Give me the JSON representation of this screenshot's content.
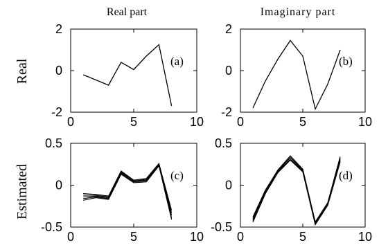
{
  "column_titles": [
    "Real part",
    "Imaginary part"
  ],
  "row_labels": [
    "Real",
    "Estimated"
  ],
  "chart_data": [
    {
      "type": "line",
      "panel_label": "(a)",
      "xlim": [
        0,
        10
      ],
      "ylim": [
        -2,
        2
      ],
      "xticks": [
        0,
        5,
        10
      ],
      "xtick_labels": [
        "0",
        "5",
        "10"
      ],
      "yticks": [
        2,
        0,
        -2
      ],
      "ytick_labels": [
        "2",
        "0",
        "-2"
      ],
      "series": [
        {
          "x": [
            1,
            2,
            3,
            4,
            5,
            6,
            7,
            8
          ],
          "y": [
            -0.2,
            -0.45,
            -0.7,
            0.4,
            0.05,
            0.7,
            1.25,
            -1.7
          ]
        }
      ]
    },
    {
      "type": "line",
      "panel_label": "(b)",
      "xlim": [
        0,
        10
      ],
      "ylim": [
        -2,
        2
      ],
      "xticks": [
        0,
        5,
        10
      ],
      "xtick_labels": [
        "0",
        "5",
        "10"
      ],
      "yticks": [
        2,
        0,
        -2
      ],
      "ytick_labels": [
        "2",
        "0",
        "-2"
      ],
      "series": [
        {
          "x": [
            1,
            2,
            3,
            4,
            5,
            6,
            7,
            8
          ],
          "y": [
            -1.8,
            -0.5,
            0.55,
            1.45,
            0.7,
            -1.85,
            -0.65,
            1.0
          ]
        }
      ]
    },
    {
      "type": "line",
      "panel_label": "(c)",
      "xlim": [
        0,
        10
      ],
      "ylim": [
        -0.5,
        0.5
      ],
      "xticks": [
        0,
        5,
        10
      ],
      "xtick_labels": [
        "0",
        "5",
        "10"
      ],
      "yticks": [
        0.5,
        0,
        -0.5
      ],
      "ytick_labels": [
        "0.5",
        "0",
        "-0.5"
      ],
      "series": [
        {
          "x": [
            1,
            2,
            3,
            4,
            5,
            6,
            7,
            8
          ],
          "y": [
            -0.1,
            -0.11,
            -0.13,
            0.17,
            0.06,
            0.08,
            0.26,
            -0.3
          ]
        },
        {
          "x": [
            1,
            2,
            3,
            4,
            5,
            6,
            7,
            8
          ],
          "y": [
            -0.12,
            -0.12,
            -0.14,
            0.16,
            0.05,
            0.07,
            0.25,
            -0.33
          ]
        },
        {
          "x": [
            1,
            2,
            3,
            4,
            5,
            6,
            7,
            8
          ],
          "y": [
            -0.14,
            -0.13,
            -0.15,
            0.15,
            0.05,
            0.06,
            0.25,
            -0.36
          ]
        },
        {
          "x": [
            1,
            2,
            3,
            4,
            5,
            6,
            7,
            8
          ],
          "y": [
            -0.16,
            -0.14,
            -0.16,
            0.14,
            0.04,
            0.05,
            0.24,
            -0.39
          ]
        },
        {
          "x": [
            1,
            2,
            3,
            4,
            5,
            6,
            7,
            8
          ],
          "y": [
            -0.18,
            -0.15,
            -0.17,
            0.13,
            0.03,
            0.04,
            0.23,
            -0.41
          ]
        }
      ]
    },
    {
      "type": "line",
      "panel_label": "(d)",
      "xlim": [
        0,
        10
      ],
      "ylim": [
        -0.5,
        0.5
      ],
      "xticks": [
        0,
        5,
        10
      ],
      "xtick_labels": [
        "0",
        "5",
        "10"
      ],
      "yticks": [
        0.5,
        0,
        -0.5
      ],
      "ytick_labels": [
        "0.5",
        "0",
        "-0.5"
      ],
      "series": [
        {
          "x": [
            1,
            2,
            3,
            4,
            5,
            6,
            7,
            8
          ],
          "y": [
            -0.38,
            -0.06,
            0.18,
            0.35,
            0.19,
            -0.44,
            -0.21,
            0.34
          ]
        },
        {
          "x": [
            1,
            2,
            3,
            4,
            5,
            6,
            7,
            8
          ],
          "y": [
            -0.4,
            -0.08,
            0.17,
            0.33,
            0.18,
            -0.45,
            -0.22,
            0.32
          ]
        },
        {
          "x": [
            1,
            2,
            3,
            4,
            5,
            6,
            7,
            8
          ],
          "y": [
            -0.42,
            -0.09,
            0.16,
            0.31,
            0.17,
            -0.46,
            -0.23,
            0.3
          ]
        },
        {
          "x": [
            1,
            2,
            3,
            4,
            5,
            6,
            7,
            8
          ],
          "y": [
            -0.44,
            -0.1,
            0.15,
            0.3,
            0.16,
            -0.47,
            -0.24,
            0.28
          ]
        }
      ]
    }
  ]
}
